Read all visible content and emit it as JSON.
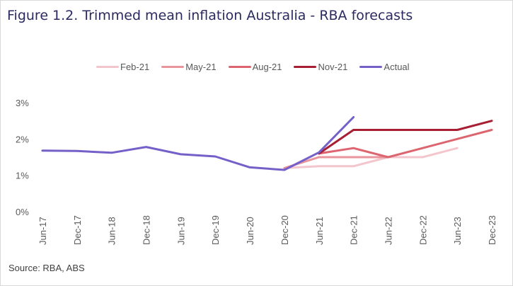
{
  "chart_data": {
    "type": "line",
    "title": "Figure 1.2. Trimmed mean inflation Australia - RBA forecasts",
    "xlabel": "",
    "ylabel": "",
    "x": [
      "Jun-17",
      "Dec-17",
      "Jun-18",
      "Dec-18",
      "Jun-19",
      "Dec-19",
      "Jun-20",
      "Dec-20",
      "Jun-21",
      "Dec-21",
      "Jun-22",
      "Dec-22",
      "Jun-23",
      "Dec-23"
    ],
    "ylim": [
      0,
      3
    ],
    "yticks": [
      0,
      1,
      2,
      3
    ],
    "ytick_labels": [
      "0%",
      "1%",
      "2%",
      "3%"
    ],
    "grid": false,
    "legend_position": "top-center",
    "series": [
      {
        "name": "Feb-21",
        "color": "#f2c6cc",
        "values": [
          null,
          null,
          null,
          null,
          null,
          null,
          null,
          1.2,
          1.25,
          1.25,
          1.5,
          1.5,
          1.75,
          null
        ]
      },
      {
        "name": "May-21",
        "color": "#e8959c",
        "values": [
          null,
          null,
          null,
          null,
          null,
          null,
          null,
          1.2,
          1.5,
          1.5,
          1.5,
          null,
          null,
          null
        ]
      },
      {
        "name": "Aug-21",
        "color": "#dc6570",
        "values": [
          null,
          null,
          null,
          null,
          null,
          null,
          null,
          null,
          1.6,
          1.75,
          1.5,
          1.75,
          2.0,
          2.25
        ]
      },
      {
        "name": "Nov-21",
        "color": "#a81e32",
        "values": [
          null,
          null,
          null,
          null,
          null,
          null,
          null,
          null,
          1.6,
          2.25,
          2.25,
          2.25,
          2.25,
          2.5
        ]
      },
      {
        "name": "Actual",
        "color": "#7460c8",
        "values": [
          1.68,
          1.67,
          1.62,
          1.78,
          1.58,
          1.52,
          1.22,
          1.15,
          1.63,
          2.6,
          null,
          null,
          null,
          null
        ]
      }
    ],
    "source": "Source: RBA, ABS"
  }
}
